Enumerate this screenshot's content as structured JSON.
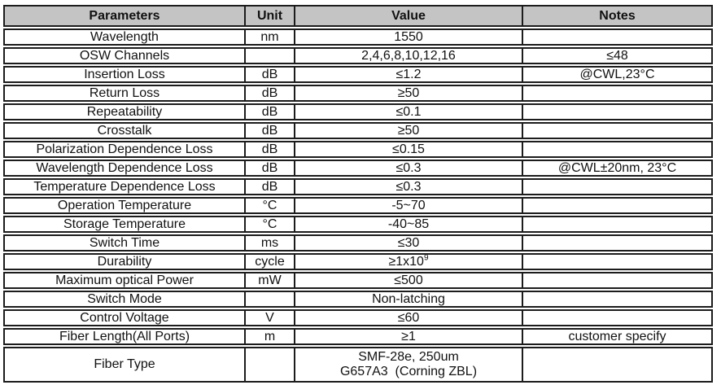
{
  "colors": {
    "header_bg": "#c4c4c4",
    "border": "#1c1c1c",
    "row_bg": "#ffffff"
  },
  "table": {
    "columns": [
      {
        "label": "Parameters"
      },
      {
        "label": "Unit"
      },
      {
        "label": "Value"
      },
      {
        "label": "Notes"
      }
    ],
    "rows": [
      {
        "parameter": "Wavelength",
        "unit": "nm",
        "value": "1550",
        "notes": ""
      },
      {
        "parameter": "OSW Channels",
        "unit": "",
        "value": "2,4,6,8,10,12,16",
        "notes": "≤48"
      },
      {
        "parameter": "Insertion Loss",
        "unit": "dB",
        "value": "≤1.2",
        "notes": "@CWL,23°C"
      },
      {
        "parameter": "Return Loss",
        "unit": "dB",
        "value": "≥50",
        "notes": ""
      },
      {
        "parameter": "Repeatability",
        "unit": "dB",
        "value": "≤0.1",
        "notes": ""
      },
      {
        "parameter": "Crosstalk",
        "unit": "dB",
        "value": "≥50",
        "notes": ""
      },
      {
        "parameter": "Polarization Dependence Loss",
        "unit": "dB",
        "value": "≤0.15",
        "notes": ""
      },
      {
        "parameter": "Wavelength Dependence Loss",
        "unit": "dB",
        "value": "≤0.3",
        "notes": "@CWL±20nm, 23°C"
      },
      {
        "parameter": "Temperature Dependence Loss",
        "unit": "dB",
        "value": "≤0.3",
        "notes": ""
      },
      {
        "parameter": "Operation Temperature",
        "unit": "°C",
        "value": "-5~70",
        "notes": ""
      },
      {
        "parameter": "Storage Temperature",
        "unit": "°C",
        "value": "-40~85",
        "notes": ""
      },
      {
        "parameter": "Switch Time",
        "unit": "ms",
        "value": "≤30",
        "notes": ""
      },
      {
        "parameter": "Durability",
        "unit": "cycle",
        "value": "≥1x10",
        "value_sup": "9",
        "notes": ""
      },
      {
        "parameter": "Maximum optical Power",
        "unit": "mW",
        "value": "≤500",
        "notes": ""
      },
      {
        "parameter": "Switch Mode",
        "unit": "",
        "value": "Non-latching",
        "notes": ""
      },
      {
        "parameter": "Control Voltage",
        "unit": "V",
        "value": "≤60",
        "notes": ""
      },
      {
        "parameter": "Fiber Length(All Ports)",
        "unit": "m",
        "value": "≥1",
        "notes": "customer specify"
      },
      {
        "parameter": "Fiber Type",
        "unit": "",
        "value": "SMF-28e, 250um",
        "value_line2": "G657A3  (Corning ZBL)",
        "notes": "",
        "tall": true
      }
    ]
  }
}
